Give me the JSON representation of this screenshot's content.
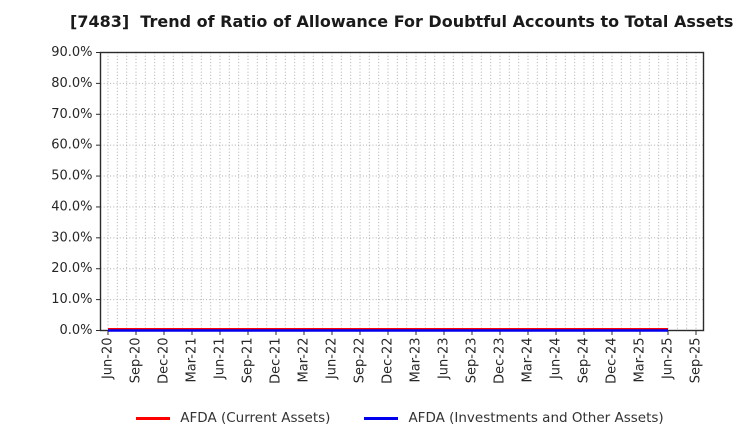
{
  "chart_data": {
    "type": "line",
    "title": "[7483]  Trend of Ratio of Allowance For Doubtful Accounts to Total Assets",
    "xlabel": "",
    "ylabel": "",
    "ylim": [
      0,
      90
    ],
    "y_tick_step": 10,
    "y_tick_labels": [
      "0.0%",
      "10.0%",
      "20.0%",
      "30.0%",
      "40.0%",
      "50.0%",
      "60.0%",
      "70.0%",
      "80.0%",
      "90.0%"
    ],
    "x_labels": [
      "Jun-20",
      "Sep-20",
      "Dec-20",
      "Mar-21",
      "Jun-21",
      "Sep-21",
      "Dec-21",
      "Mar-22",
      "Jun-22",
      "Sep-22",
      "Dec-22",
      "Mar-23",
      "Jun-23",
      "Sep-23",
      "Dec-23",
      "Mar-24",
      "Jun-24",
      "Sep-24",
      "Dec-24",
      "Mar-25",
      "Jun-25",
      "Sep-25"
    ],
    "grid": {
      "style": "dotted",
      "vertical": "monthly",
      "horizontal": "every 10%",
      "color": "#b0b0b0"
    },
    "legend_position": "bottom",
    "axis_color": "#2b2b2b",
    "series": [
      {
        "name": "AFDA (Current Assets)",
        "color": "#ff0000",
        "last_x": "Jun-25",
        "values": [
          0.5,
          0.5,
          0.5,
          0.5,
          0.5,
          0.5,
          0.5,
          0.5,
          0.5,
          0.5,
          0.5,
          0.5,
          0.5,
          0.5,
          0.5,
          0.5,
          0.5,
          0.5,
          0.5,
          0.5,
          0.5
        ]
      },
      {
        "name": "AFDA (Investments and Other Assets)",
        "color": "#0000ee",
        "last_x": "Jun-25",
        "values": [
          0.0,
          0.0,
          0.0,
          0.0,
          0.0,
          0.0,
          0.0,
          0.0,
          0.0,
          0.0,
          0.0,
          0.0,
          0.0,
          0.0,
          0.0,
          0.0,
          0.0,
          0.0,
          0.0,
          0.0,
          0.0
        ]
      }
    ]
  }
}
